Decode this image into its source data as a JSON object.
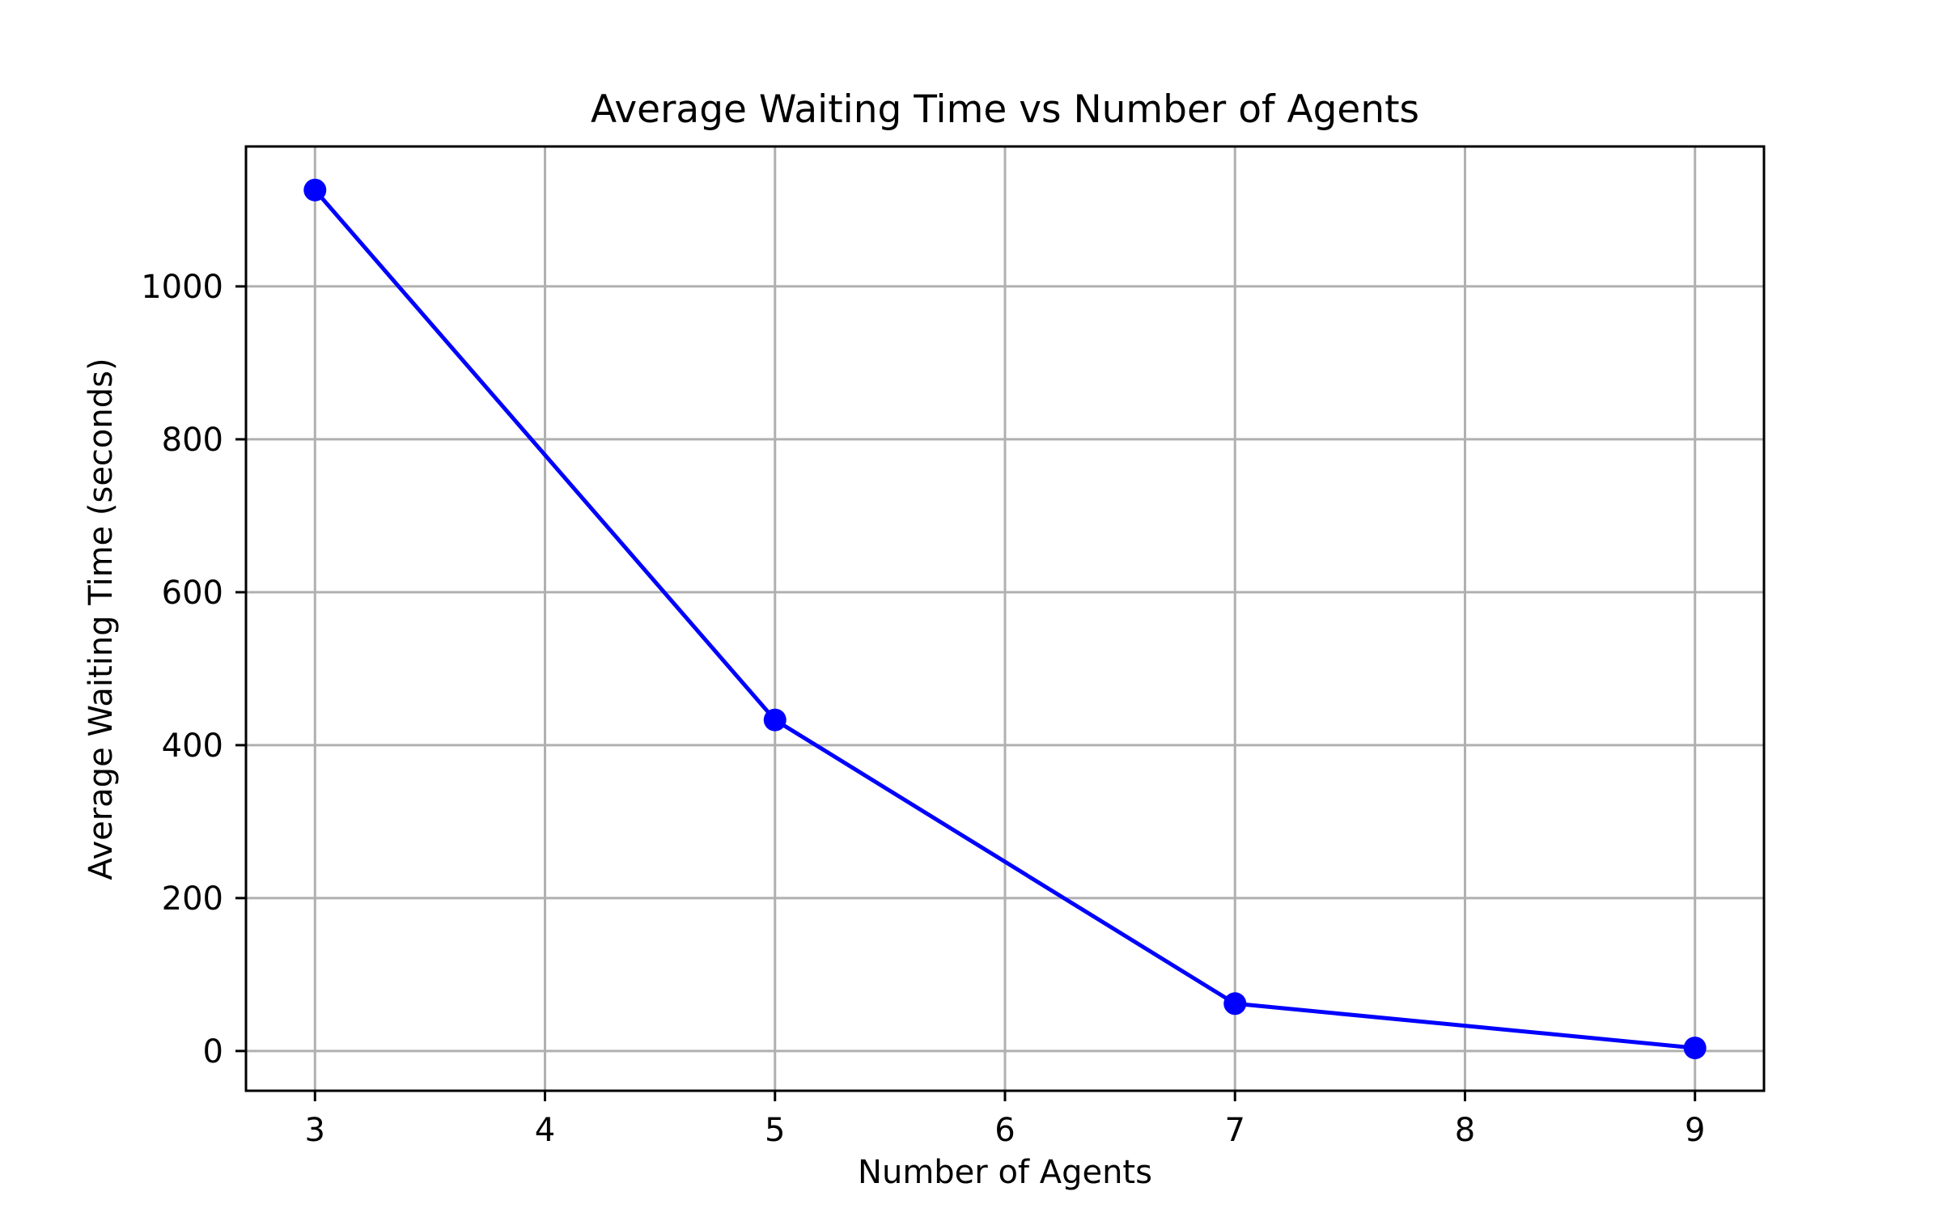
{
  "chart_data": {
    "type": "line",
    "title": "Average Waiting Time vs Number of Agents",
    "xlabel": "Number of Agents",
    "ylabel": "Average Waiting Time (seconds)",
    "x": [
      3,
      5,
      7,
      9
    ],
    "series": [
      {
        "values": [
          1126,
          433,
          62,
          4
        ],
        "color": "#0000ff",
        "marker": "circle"
      }
    ],
    "xlim": [
      2.7,
      9.3
    ],
    "ylim": [
      -52,
      1183
    ],
    "xticks": [
      3,
      4,
      5,
      6,
      7,
      8,
      9
    ],
    "xtick_labels": [
      "3",
      "4",
      "5",
      "6",
      "7",
      "8",
      "9"
    ],
    "yticks": [
      0,
      200,
      400,
      600,
      800,
      1000
    ],
    "ytick_labels": [
      "0",
      "200",
      "400",
      "600",
      "800",
      "1000"
    ],
    "grid": true,
    "colors": {
      "line": "#0000ff",
      "grid": "#b0b0b0",
      "axes": "#000000"
    }
  }
}
